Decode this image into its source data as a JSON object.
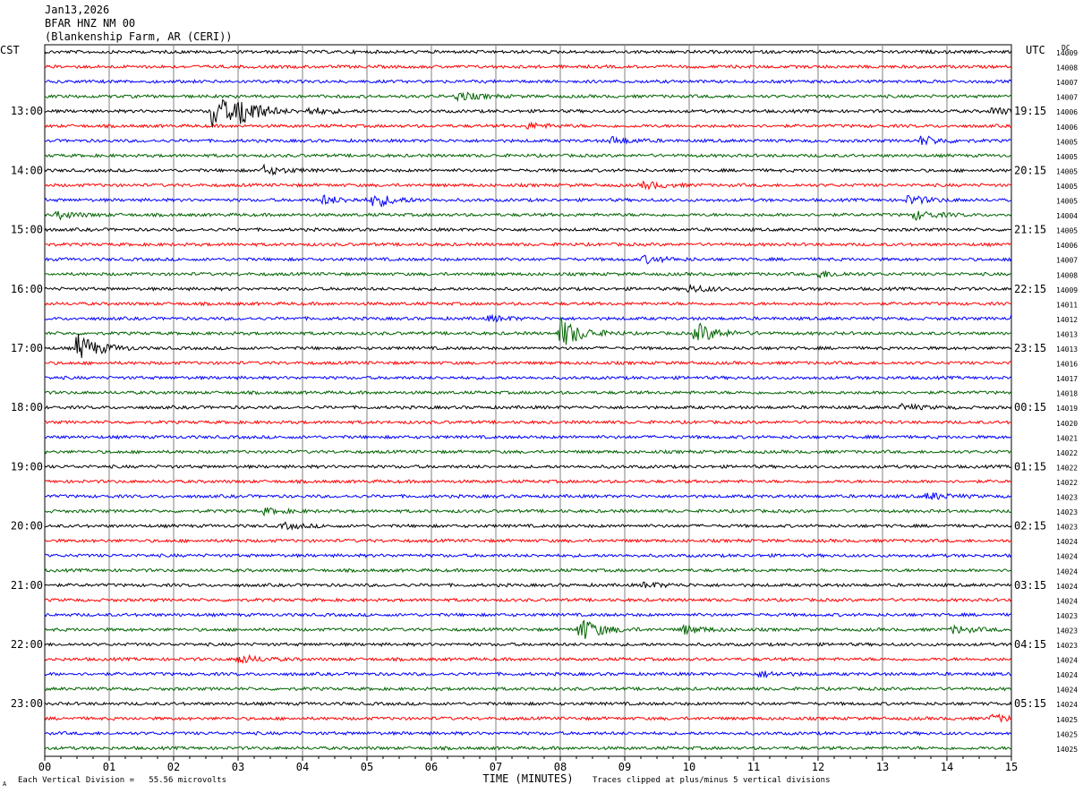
{
  "header": {
    "date": "Jan13,2026",
    "station": "BFAR HNZ NM 00",
    "location": "(Blankenship Farm, AR (CERI))"
  },
  "left_tz": "CST",
  "right_tz": "UTC",
  "dc_label": "DC",
  "footer": {
    "scale_note": "Each Vertical Division =   55.56 microvolts",
    "clip_note": "Traces clipped at plus/minus 5 vertical divisions",
    "corner_mark": "A"
  },
  "colors": {
    "trace_cycle": [
      "#000000",
      "#ff0000",
      "#0000ff",
      "#006400"
    ],
    "grid": "#808080"
  },
  "chart_data": {
    "type": "line",
    "xlabel": "TIME (MINUTES)",
    "x_ticks": [
      "00",
      "01",
      "02",
      "03",
      "04",
      "05",
      "06",
      "07",
      "08",
      "09",
      "10",
      "11",
      "12",
      "13",
      "14",
      "15"
    ],
    "xlim": [
      0,
      15
    ],
    "left_hour_labels": [
      "13:00",
      "14:00",
      "15:00",
      "16:00",
      "17:00",
      "18:00",
      "19:00",
      "20:00",
      "21:00",
      "22:00",
      "23:00"
    ],
    "right_hour_labels": [
      "19:15",
      "20:15",
      "21:15",
      "22:15",
      "23:15",
      "00:15",
      "01:15",
      "02:15",
      "03:15",
      "04:15",
      "05:15"
    ],
    "dc_offsets": [
      "14009",
      "14008",
      "14007",
      "14007",
      "14006",
      "14006",
      "14005",
      "14005",
      "14005",
      "14005",
      "14005",
      "14004",
      "14005",
      "14006",
      "14007",
      "14008",
      "14009",
      "14011",
      "14012",
      "14013",
      "14013",
      "14016",
      "14017",
      "14018",
      "14019",
      "14020",
      "14021",
      "14022",
      "14022",
      "14022",
      "14023",
      "14023",
      "14023",
      "14024",
      "14024",
      "14024",
      "14024",
      "14024",
      "14023",
      "14023",
      "14023",
      "14024",
      "14024",
      "14024",
      "14024",
      "14025",
      "14025",
      "14025"
    ],
    "events": [
      {
        "trace": 3,
        "minute": 6.4,
        "amp": 5
      },
      {
        "trace": 4,
        "minute": 2.6,
        "amp": 22
      },
      {
        "trace": 4,
        "minute": 3.0,
        "amp": 16
      },
      {
        "trace": 4,
        "minute": 4.1,
        "amp": 4
      },
      {
        "trace": 4,
        "minute": 14.7,
        "amp": 4
      },
      {
        "trace": 5,
        "minute": 7.5,
        "amp": 3
      },
      {
        "trace": 6,
        "minute": 8.8,
        "amp": 4
      },
      {
        "trace": 6,
        "minute": 13.6,
        "amp": 5
      },
      {
        "trace": 8,
        "minute": 3.4,
        "amp": 5
      },
      {
        "trace": 9,
        "minute": 9.3,
        "amp": 4
      },
      {
        "trace": 10,
        "minute": 4.3,
        "amp": 5
      },
      {
        "trace": 10,
        "minute": 5.1,
        "amp": 8
      },
      {
        "trace": 10,
        "minute": 13.4,
        "amp": 5
      },
      {
        "trace": 11,
        "minute": 0.2,
        "amp": 4
      },
      {
        "trace": 11,
        "minute": 13.5,
        "amp": 5
      },
      {
        "trace": 14,
        "minute": 9.3,
        "amp": 4
      },
      {
        "trace": 15,
        "minute": 12.0,
        "amp": 4
      },
      {
        "trace": 16,
        "minute": 10.0,
        "amp": 4
      },
      {
        "trace": 18,
        "minute": 6.9,
        "amp": 3
      },
      {
        "trace": 18,
        "minute": 15.0,
        "amp": 4
      },
      {
        "trace": 19,
        "minute": 8.0,
        "amp": 18
      },
      {
        "trace": 19,
        "minute": 10.1,
        "amp": 12
      },
      {
        "trace": 20,
        "minute": 0.5,
        "amp": 16
      },
      {
        "trace": 24,
        "minute": 13.3,
        "amp": 3
      },
      {
        "trace": 30,
        "minute": 13.7,
        "amp": 4
      },
      {
        "trace": 31,
        "minute": 3.4,
        "amp": 3
      },
      {
        "trace": 32,
        "minute": 3.7,
        "amp": 3
      },
      {
        "trace": 36,
        "minute": 9.3,
        "amp": 3
      },
      {
        "trace": 39,
        "minute": 8.3,
        "amp": 14
      },
      {
        "trace": 39,
        "minute": 9.9,
        "amp": 5
      },
      {
        "trace": 39,
        "minute": 14.1,
        "amp": 4
      },
      {
        "trace": 41,
        "minute": 3.0,
        "amp": 5
      },
      {
        "trace": 42,
        "minute": 11.1,
        "amp": 3
      },
      {
        "trace": 45,
        "minute": 14.7,
        "amp": 4
      }
    ]
  }
}
